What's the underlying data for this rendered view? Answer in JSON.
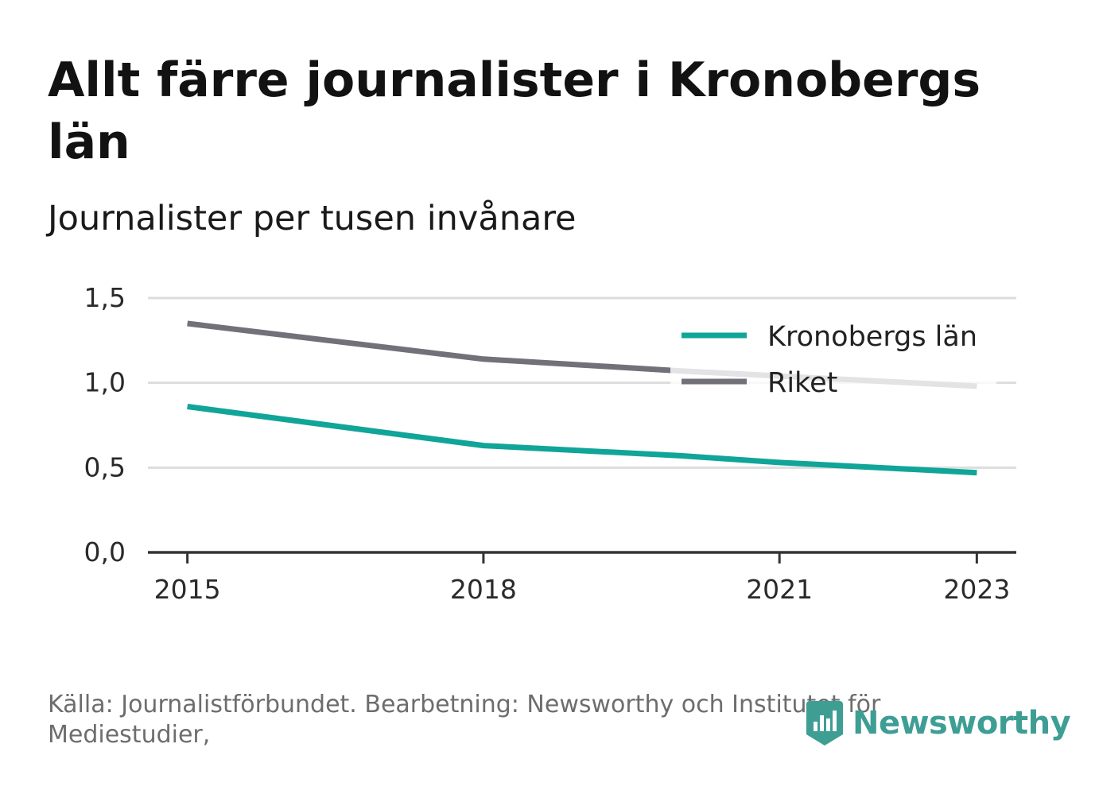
{
  "header": {
    "title": "Allt färre journalister i Kronobergs län",
    "subtitle": "Journalister per tusen invånare"
  },
  "footer": {
    "source": "Källa: Journalistförbundet. Bearbetning: Newsworthy och Institutet för Mediestudier,",
    "brand": "Newsworthy",
    "brand_icon": "newsworthy-logo-icon"
  },
  "colors": {
    "kronoberg": "#10a598",
    "riket": "#727179",
    "grid": "#dddddd",
    "axis": "#333333",
    "brand": "#3e9e94"
  },
  "chart_data": {
    "type": "line",
    "title": "Allt färre journalister i Kronobergs län",
    "subtitle": "Journalister per tusen invånare",
    "x": [
      2015,
      2018,
      2021,
      2023
    ],
    "x_tick_labels": [
      "2015",
      "2018",
      "2021",
      "2023"
    ],
    "xlim": [
      2014.6,
      2023.4
    ],
    "ylim": [
      0,
      1.5
    ],
    "y_ticks": [
      0,
      0.5,
      1.0,
      1.5
    ],
    "y_tick_labels": [
      "0,0",
      "0,5",
      "1,0",
      "1,5"
    ],
    "grid": true,
    "legend_position": "top-right",
    "series": [
      {
        "name": "Kronobergs län",
        "color": "#10a598",
        "x": [
          2015,
          2018,
          2020,
          2021,
          2023
        ],
        "values": [
          0.86,
          0.63,
          0.57,
          0.53,
          0.47
        ]
      },
      {
        "name": "Riket",
        "color": "#727179",
        "x": [
          2015,
          2018,
          2020,
          2021,
          2023
        ],
        "values": [
          1.35,
          1.14,
          1.07,
          1.04,
          0.98
        ]
      }
    ]
  }
}
